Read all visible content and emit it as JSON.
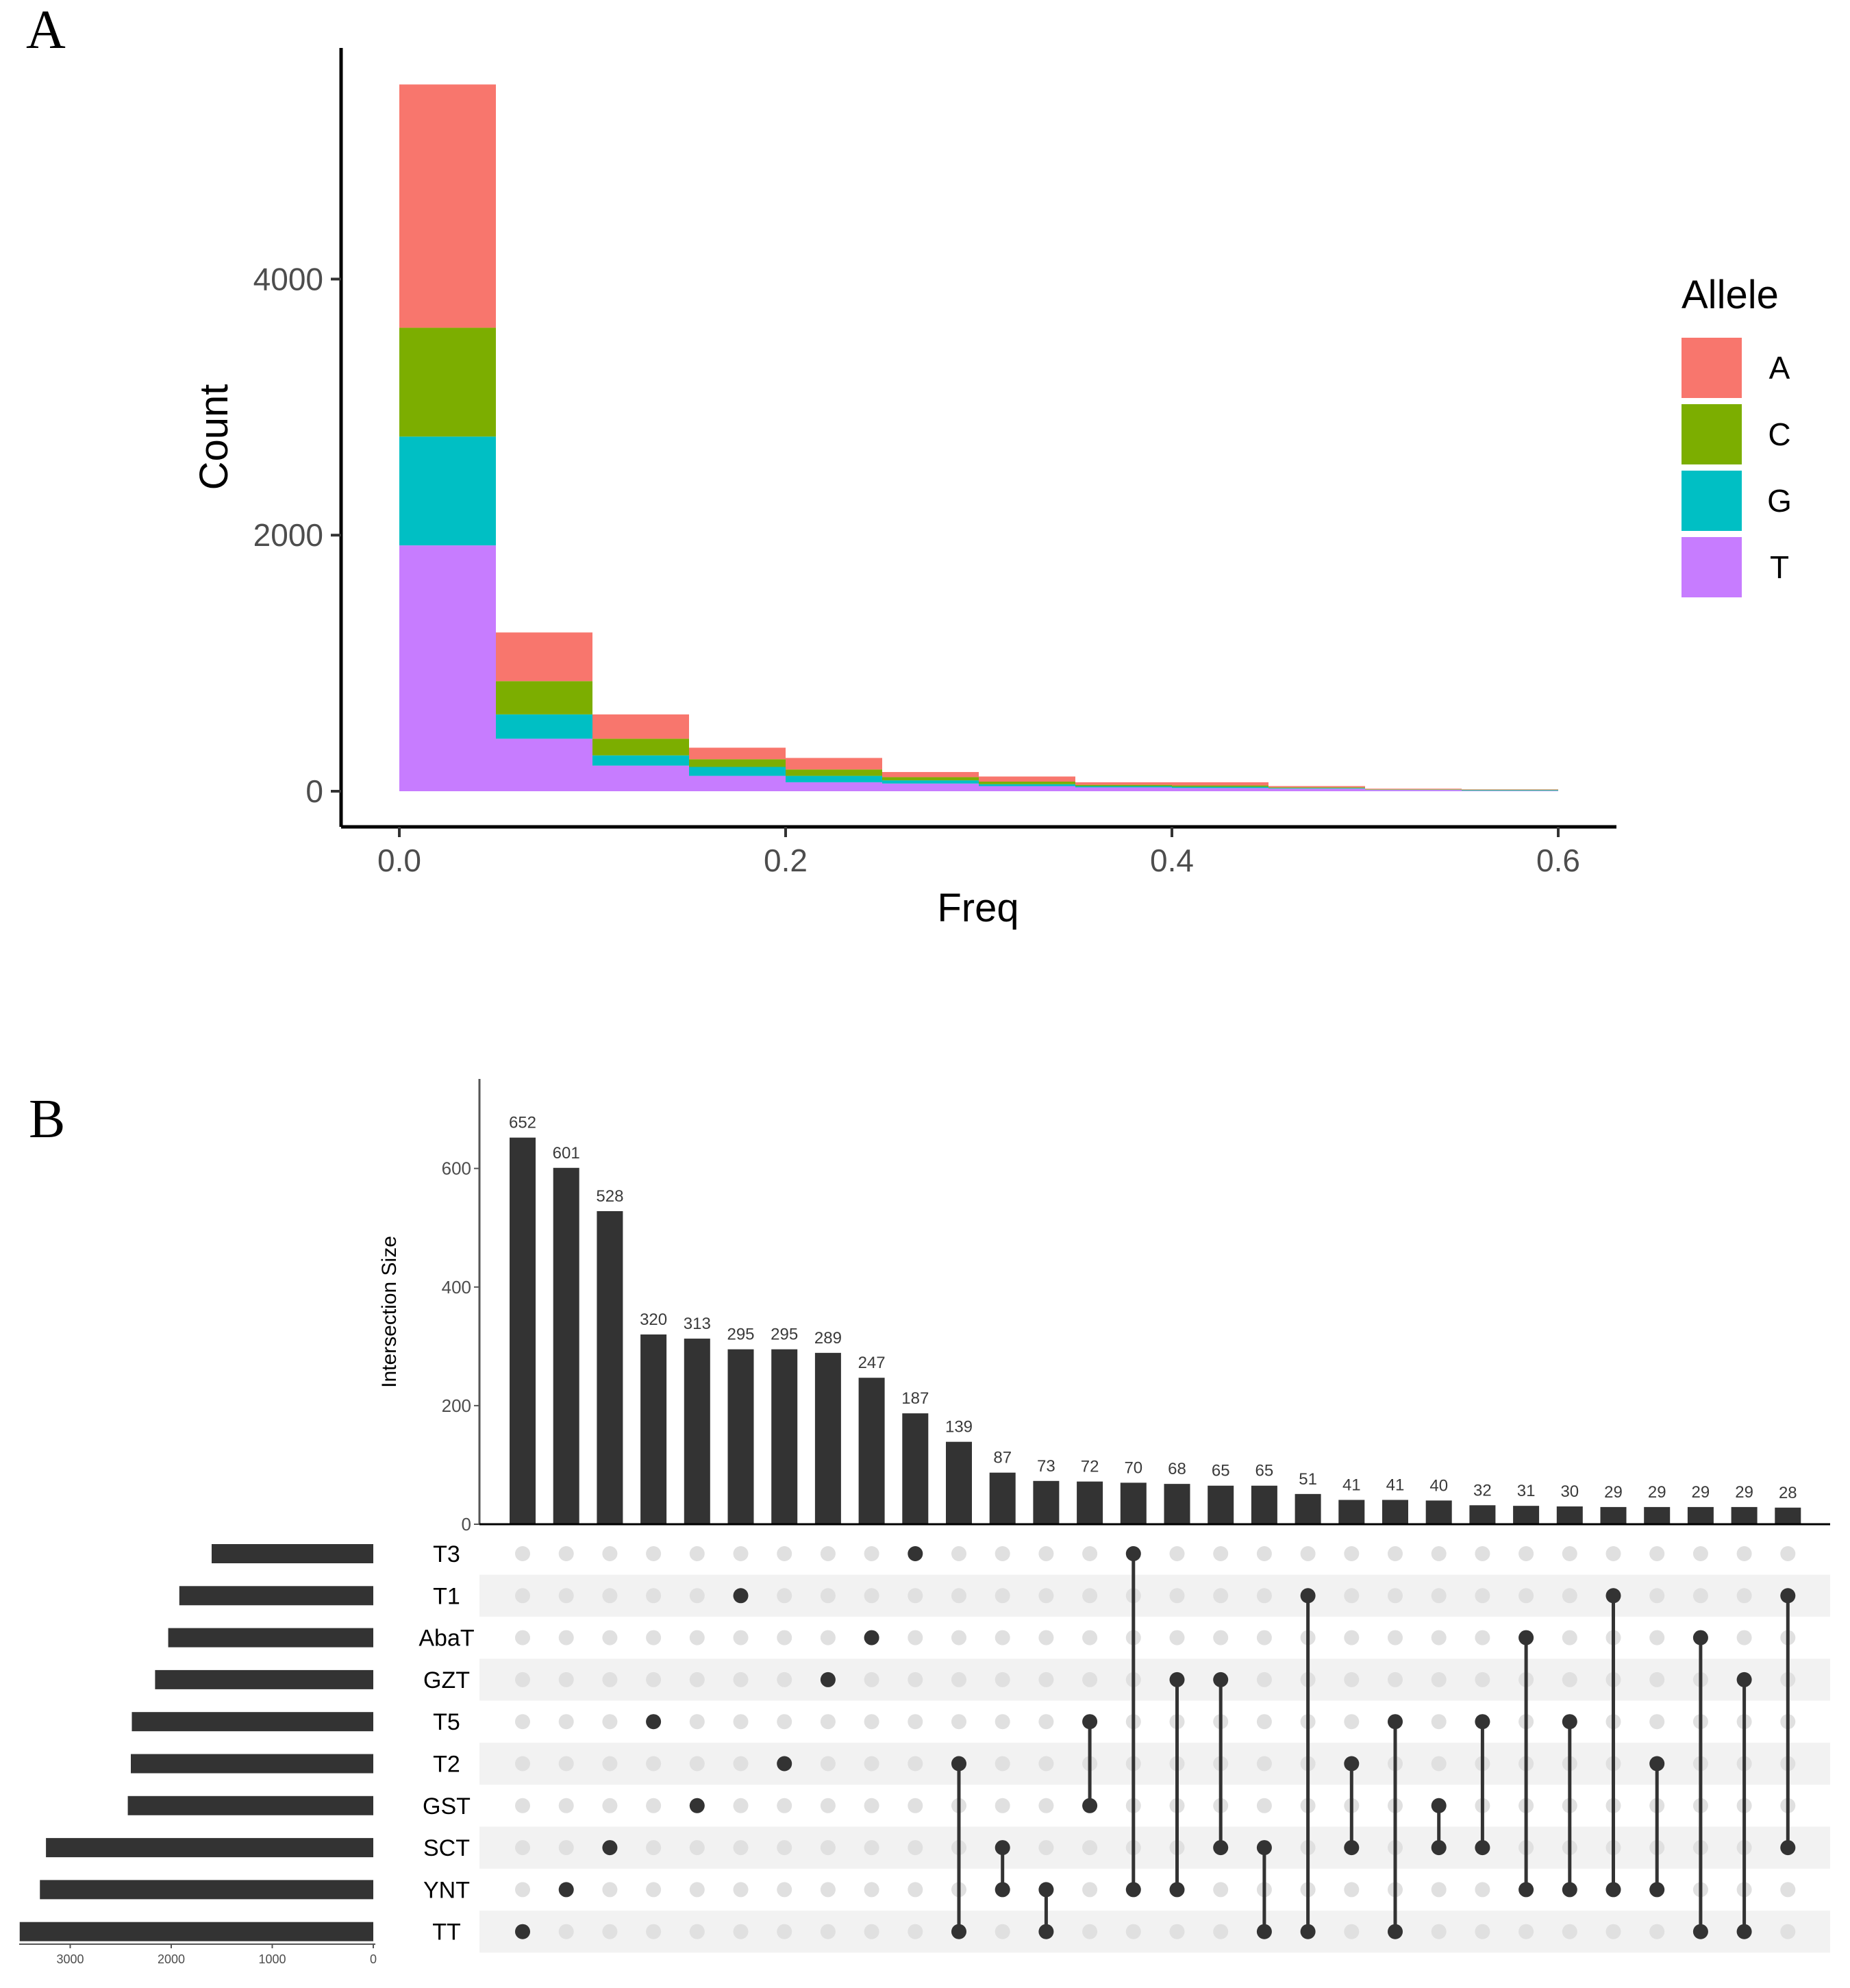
{
  "chart_data": [
    {
      "panel": "A",
      "type": "bar",
      "stacked": true,
      "title": "",
      "xlabel": "Freq",
      "ylabel": "Count",
      "xlim": [
        -0.025,
        0.625
      ],
      "ylim": [
        -270,
        5800
      ],
      "x_ticks": [
        0.0,
        0.2,
        0.4,
        0.6
      ],
      "x_tick_labels": [
        "0.0",
        "0.2",
        "0.4",
        "0.6"
      ],
      "y_ticks": [
        0,
        2000,
        4000
      ],
      "y_tick_labels": [
        "0",
        "2000",
        "4000"
      ],
      "bin_width": 0.05,
      "bins": [
        0.0,
        0.05,
        0.1,
        0.15,
        0.2,
        0.25,
        0.3,
        0.35,
        0.4,
        0.45,
        0.5,
        0.55
      ],
      "legend": {
        "title": "Allele",
        "position": "right"
      },
      "series": [
        {
          "name": "A",
          "color": "#F8766D",
          "values": [
            1900,
            380,
            190,
            90,
            90,
            40,
            40,
            20,
            25,
            10,
            5,
            3
          ]
        },
        {
          "name": "C",
          "color": "#7CAE00",
          "values": [
            850,
            260,
            130,
            60,
            50,
            25,
            20,
            10,
            10,
            5,
            3,
            3
          ]
        },
        {
          "name": "G",
          "color": "#00BFC4",
          "values": [
            850,
            190,
            80,
            70,
            50,
            25,
            15,
            10,
            10,
            5,
            2,
            5
          ]
        },
        {
          "name": "T",
          "color": "#C77CFF",
          "values": [
            1920,
            410,
            200,
            120,
            70,
            60,
            40,
            30,
            25,
            20,
            10,
            4
          ]
        }
      ]
    },
    {
      "panel": "B",
      "type": "upset",
      "ylabel": "Intersection Size",
      "ylim": [
        0,
        740
      ],
      "y_ticks": [
        0,
        200,
        400,
        600
      ],
      "y_tick_labels": [
        "0",
        "200",
        "400",
        "600"
      ],
      "set_size_ticks": [
        3000,
        2000,
        1000,
        0
      ],
      "set_size_tick_labels": [
        "3000",
        "2000",
        "1000",
        "0"
      ],
      "set_size_max": 3600,
      "sets": [
        "T3",
        "T1",
        "AbaT",
        "GZT",
        "T5",
        "T2",
        "GST",
        "SCT",
        "YNT",
        "TT"
      ],
      "set_sizes": [
        1600,
        1920,
        2030,
        2160,
        2390,
        2400,
        2430,
        3240,
        3300,
        3500
      ],
      "intersections": [
        {
          "size": 652,
          "label": "652",
          "sets": [
            "TT"
          ]
        },
        {
          "size": 601,
          "label": "601",
          "sets": [
            "YNT"
          ]
        },
        {
          "size": 528,
          "label": "528",
          "sets": [
            "SCT"
          ]
        },
        {
          "size": 320,
          "label": "320",
          "sets": [
            "T5"
          ]
        },
        {
          "size": 313,
          "label": "313",
          "sets": [
            "GST"
          ]
        },
        {
          "size": 295,
          "label": "295",
          "sets": [
            "T1"
          ]
        },
        {
          "size": 295,
          "label": "295",
          "sets": [
            "T2"
          ]
        },
        {
          "size": 289,
          "label": "289",
          "sets": [
            "GZT"
          ]
        },
        {
          "size": 247,
          "label": "247",
          "sets": [
            "AbaT"
          ]
        },
        {
          "size": 187,
          "label": "187",
          "sets": [
            "T3"
          ]
        },
        {
          "size": 139,
          "label": "139",
          "sets": [
            "T2",
            "TT"
          ]
        },
        {
          "size": 87,
          "label": "87",
          "sets": [
            "SCT",
            "YNT"
          ]
        },
        {
          "size": 73,
          "label": "73",
          "sets": [
            "YNT",
            "TT"
          ]
        },
        {
          "size": 72,
          "label": "72",
          "sets": [
            "T5",
            "GST"
          ]
        },
        {
          "size": 70,
          "label": "70",
          "sets": [
            "T3",
            "YNT"
          ]
        },
        {
          "size": 68,
          "label": "68",
          "sets": [
            "GZT",
            "YNT"
          ]
        },
        {
          "size": 65,
          "label": "65",
          "sets": [
            "GZT",
            "SCT"
          ]
        },
        {
          "size": 65,
          "label": "65",
          "sets": [
            "SCT",
            "TT"
          ]
        },
        {
          "size": 51,
          "label": "51",
          "sets": [
            "T1",
            "TT"
          ]
        },
        {
          "size": 41,
          "label": "41",
          "sets": [
            "T2",
            "SCT"
          ]
        },
        {
          "size": 41,
          "label": "41",
          "sets": [
            "T5",
            "TT"
          ]
        },
        {
          "size": 40,
          "label": "40",
          "sets": [
            "GST",
            "SCT"
          ]
        },
        {
          "size": 32,
          "label": "32",
          "sets": [
            "T5",
            "SCT"
          ]
        },
        {
          "size": 31,
          "label": "31",
          "sets": [
            "AbaT",
            "YNT"
          ]
        },
        {
          "size": 30,
          "label": "30",
          "sets": [
            "T5",
            "YNT"
          ]
        },
        {
          "size": 29,
          "label": "29",
          "sets": [
            "T1",
            "YNT"
          ]
        },
        {
          "size": 29,
          "label": "29",
          "sets": [
            "T2",
            "YNT"
          ]
        },
        {
          "size": 29,
          "label": "29",
          "sets": [
            "AbaT",
            "TT"
          ]
        },
        {
          "size": 29,
          "label": "29",
          "sets": [
            "GZT",
            "TT"
          ]
        },
        {
          "size": 28,
          "label": "28",
          "sets": [
            "T1",
            "SCT"
          ]
        }
      ]
    }
  ],
  "panel_labels": {
    "a": "A",
    "b": "B"
  }
}
